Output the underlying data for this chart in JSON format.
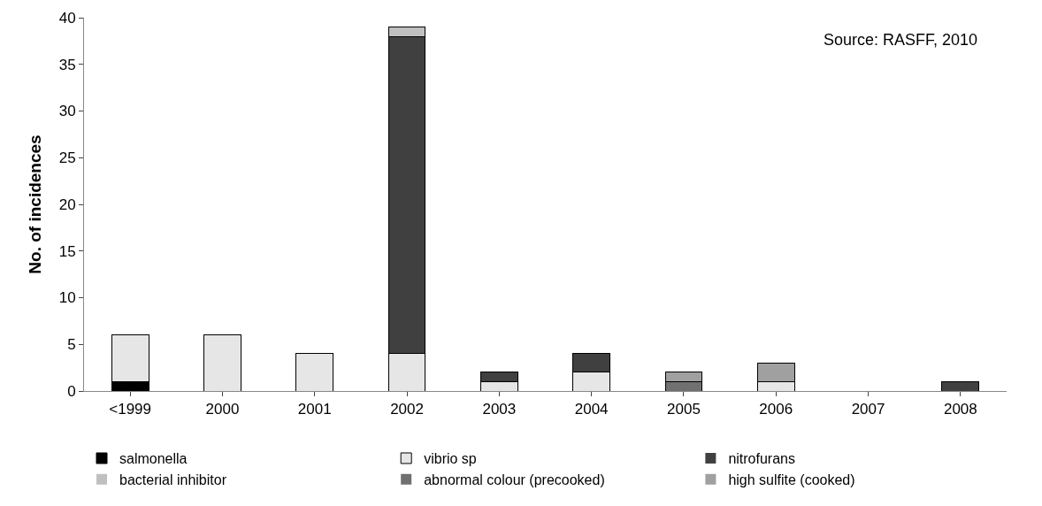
{
  "chart_data": {
    "type": "bar",
    "stacked": true,
    "ylabel": "No. of incidences",
    "annotations": [
      "Source: RASFF, 2010"
    ],
    "categories": [
      "<1999",
      "2000",
      "2001",
      "2002",
      "2003",
      "2004",
      "2005",
      "2006",
      "2007",
      "2008"
    ],
    "series": [
      {
        "name": "salmonella",
        "color": "#000000",
        "values": [
          1,
          0,
          0,
          0,
          0,
          0,
          0,
          0,
          0,
          0
        ]
      },
      {
        "name": "vibrio sp",
        "color": "#e6e6e6",
        "values": [
          5,
          6,
          4,
          4,
          1,
          2,
          0,
          1,
          0,
          0
        ]
      },
      {
        "name": "nitrofurans",
        "color": "#404040",
        "values": [
          0,
          0,
          0,
          34,
          1,
          2,
          0,
          0,
          0,
          1
        ]
      },
      {
        "name": "bacterial inhibitor",
        "color": "#c0c0c0",
        "values": [
          0,
          0,
          0,
          1,
          0,
          0,
          0,
          0,
          0,
          0
        ]
      },
      {
        "name": "abnormal colour (precooked)",
        "color": "#707070",
        "values": [
          0,
          0,
          0,
          0,
          0,
          0,
          1,
          0,
          0,
          0
        ]
      },
      {
        "name": "high sulfite (cooked)",
        "color": "#a0a0a0",
        "values": [
          0,
          0,
          0,
          0,
          0,
          0,
          1,
          2,
          0,
          0
        ]
      }
    ],
    "ylim": [
      0,
      40
    ],
    "yticks": [
      0,
      5,
      10,
      15,
      20,
      25,
      30,
      35,
      40
    ],
    "legend": "bottom"
  }
}
